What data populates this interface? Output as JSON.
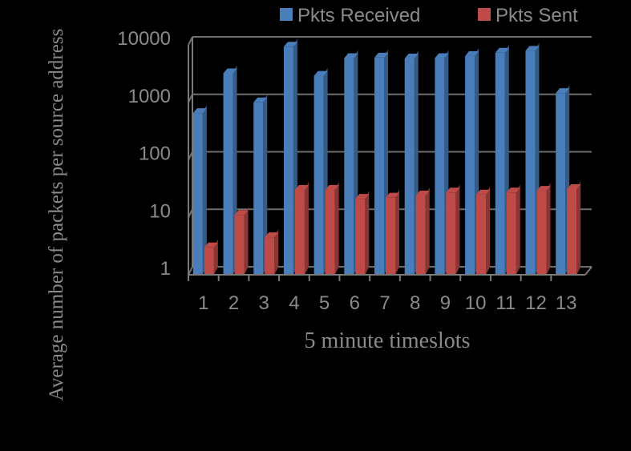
{
  "chart_data": {
    "type": "bar",
    "title": "",
    "xlabel": "5 minute timeslots",
    "ylabel": "Average number of packets per source address",
    "yscale": "log",
    "ylim": [
      1,
      10000
    ],
    "yticks": [
      1,
      10,
      100,
      1000,
      10000
    ],
    "grid": true,
    "legend": "top-right",
    "categories": [
      "1",
      "2",
      "3",
      "4",
      "5",
      "6",
      "7",
      "8",
      "9",
      "10",
      "11",
      "12",
      "13"
    ],
    "series": [
      {
        "name": "Pkts Received",
        "color": "#4a7ebb",
        "values": [
          650,
          3200,
          1000,
          9300,
          2900,
          5900,
          6000,
          5800,
          5900,
          6400,
          7300,
          7900,
          1450
        ]
      },
      {
        "name": "Pkts Sent",
        "color": "#be4b48",
        "values": [
          3,
          11,
          4.5,
          30,
          30,
          21,
          22,
          24,
          27,
          25,
          27,
          29,
          31
        ]
      }
    ]
  }
}
